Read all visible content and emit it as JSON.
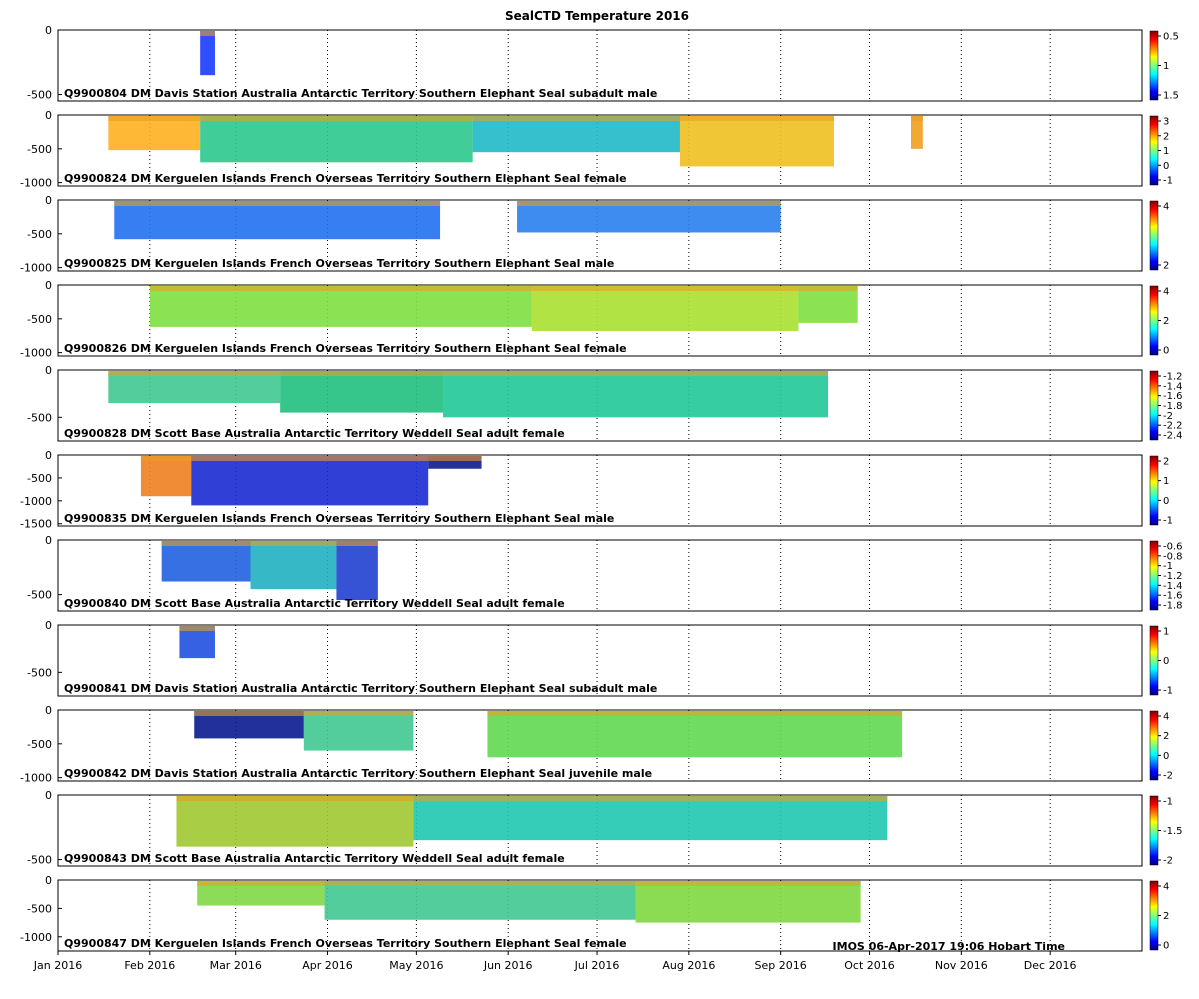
{
  "chart_data": {
    "type": "heatmap",
    "title": "SealCTD Temperature 2016",
    "x_ticks": [
      "Jan 2016",
      "Feb 2016",
      "Mar 2016",
      "Apr 2016",
      "May 2016",
      "Jun 2016",
      "Jul 2016",
      "Aug 2016",
      "Sep 2016",
      "Oct 2016",
      "Nov 2016",
      "Dec 2016"
    ],
    "x_range_days": [
      0,
      366
    ],
    "footer": "IMOS 06-Apr-2017 19:06 Hobart Time",
    "colorscale": [
      "#00007f",
      "#0000ff",
      "#007fff",
      "#00ffff",
      "#7fff7f",
      "#ffff00",
      "#ff7f00",
      "#ff0000",
      "#7f0000"
    ],
    "panels": [
      {
        "label": "Q9900804 DM Davis Station Australia Antarctic Territory Southern Elephant Seal subadult male",
        "ylim": [
          -550,
          0
        ],
        "y_ticks": [
          0,
          -500
        ],
        "cb_ticks": [
          "0.5",
          "1",
          "1.5"
        ],
        "tracks": [
          [
            48,
            53,
            -350,
            "#1a3cff"
          ]
        ]
      },
      {
        "label": "Q9900824 DM Kerguelen Islands French Overseas Territory Southern Elephant Seal  female",
        "ylim": [
          -1050,
          0
        ],
        "y_ticks": [
          0,
          -500,
          -1000
        ],
        "cb_ticks": [
          "3",
          "2",
          "1",
          "0",
          "-1"
        ],
        "tracks": [
          [
            17,
            48,
            -520,
            "#ffb020"
          ],
          [
            48,
            140,
            -700,
            "#2cc88c"
          ],
          [
            140,
            210,
            -550,
            "#20b8c8"
          ],
          [
            210,
            262,
            -760,
            "#f0c020"
          ],
          [
            288,
            292,
            -500,
            "#f0a020"
          ]
        ]
      },
      {
        "label": "Q9900825 DM Kerguelen Islands French Overseas Territory Southern Elephant Seal  male",
        "ylim": [
          -1050,
          0
        ],
        "y_ticks": [
          0,
          -500,
          -1000
        ],
        "cb_ticks": [
          "4",
          "2"
        ],
        "tracks": [
          [
            19,
            129,
            -580,
            "#2070f0"
          ],
          [
            155,
            244,
            -480,
            "#2a80f0"
          ]
        ]
      },
      {
        "label": "Q9900826 DM Kerguelen Islands French Overseas Territory Southern Elephant Seal  female",
        "ylim": [
          -1050,
          0
        ],
        "y_ticks": [
          0,
          -500,
          -1000
        ],
        "cb_ticks": [
          "4",
          "2",
          "0"
        ],
        "tracks": [
          [
            31,
            160,
            -620,
            "#7ee040"
          ],
          [
            160,
            250,
            -680,
            "#a8e030"
          ],
          [
            250,
            270,
            -560,
            "#7ee040"
          ]
        ]
      },
      {
        "label": "Q9900828 DM Scott Base Australia Antarctic Territory Weddell Seal adult female",
        "ylim": [
          -750,
          0
        ],
        "y_ticks": [
          0,
          -500
        ],
        "cb_ticks": [
          "-1.2",
          "-1.4",
          "-1.6",
          "-1.8",
          "-2",
          "-2.2",
          "-2.4"
        ],
        "tracks": [
          [
            17,
            75,
            -350,
            "#40c890"
          ],
          [
            75,
            130,
            -450,
            "#20c080"
          ],
          [
            130,
            260,
            -500,
            "#20c898"
          ]
        ]
      },
      {
        "label": "Q9900835 DM Kerguelen Islands French Overseas Territory Southern Elephant Seal  male",
        "ylim": [
          -1550,
          0
        ],
        "y_ticks": [
          0,
          -500,
          -1000,
          -1500
        ],
        "cb_ticks": [
          "2",
          "1",
          "0",
          "-1"
        ],
        "tracks": [
          [
            28,
            45,
            -900,
            "#f08020"
          ],
          [
            45,
            125,
            -1100,
            "#1a2ad0"
          ],
          [
            125,
            143,
            -300,
            "#101890"
          ]
        ]
      },
      {
        "label": "Q9900840 DM Scott Base Australia Antarctic Territory Weddell Seal adult female",
        "ylim": [
          -650,
          0
        ],
        "y_ticks": [
          0,
          -500
        ],
        "cb_ticks": [
          "-0.6",
          "-0.8",
          "-1",
          "-1.2",
          "-1.4",
          "-1.6",
          "-1.8"
        ],
        "tracks": [
          [
            35,
            65,
            -380,
            "#2060e0"
          ],
          [
            65,
            94,
            -450,
            "#20b0c0"
          ],
          [
            94,
            108,
            -550,
            "#2040d0"
          ]
        ]
      },
      {
        "label": "Q9900841 DM Davis Station Australia Antarctic Territory Southern Elephant Seal subadult male",
        "ylim": [
          -750,
          0
        ],
        "y_ticks": [
          0,
          -500
        ],
        "cb_ticks": [
          "1",
          "0",
          "-1"
        ],
        "tracks": [
          [
            41,
            53,
            -350,
            "#2050e0"
          ]
        ]
      },
      {
        "label": "Q9900842 DM Davis Station Australia Antarctic Territory Southern Elephant Seal juvenile male",
        "ylim": [
          -1050,
          0
        ],
        "y_ticks": [
          0,
          -500,
          -1000
        ],
        "cb_ticks": [
          "4",
          "2",
          "0",
          "-2"
        ],
        "tracks": [
          [
            46,
            83,
            -420,
            "#0a1a90"
          ],
          [
            83,
            120,
            -600,
            "#40c890"
          ],
          [
            145,
            285,
            -700,
            "#60d850"
          ]
        ]
      },
      {
        "label": "Q9900843 DM Scott Base Australia Antarctic Territory Weddell Seal adult female",
        "ylim": [
          -550,
          0
        ],
        "y_ticks": [
          0,
          -500
        ],
        "cb_ticks": [
          "-1",
          "-1.5",
          "-2"
        ],
        "tracks": [
          [
            40,
            120,
            -400,
            "#a0c830"
          ],
          [
            120,
            280,
            -350,
            "#20c8b0"
          ]
        ]
      },
      {
        "label": "Q9900847 DM Kerguelen Islands French Overseas Territory Southern Elephant Seal  female",
        "ylim": [
          -1250,
          0
        ],
        "y_ticks": [
          0,
          -500,
          -1000
        ],
        "cb_ticks": [
          "4",
          "2",
          "0"
        ],
        "tracks": [
          [
            47,
            90,
            -450,
            "#80d848"
          ],
          [
            90,
            195,
            -700,
            "#40c890"
          ],
          [
            195,
            271,
            -750,
            "#80d840"
          ]
        ]
      }
    ]
  }
}
